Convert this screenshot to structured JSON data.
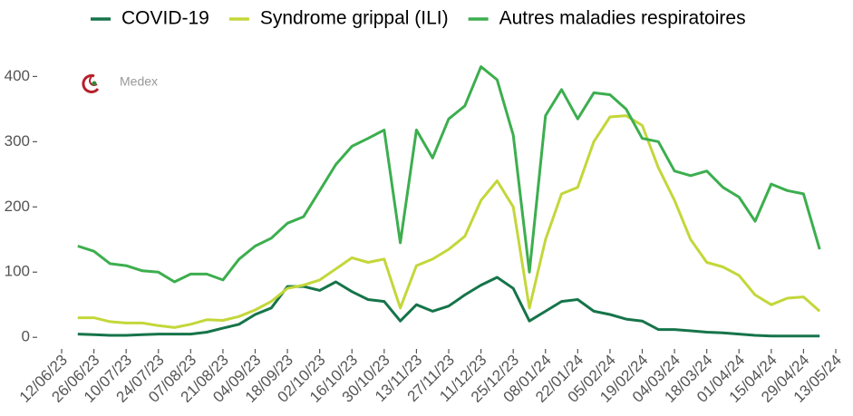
{
  "chart_data": {
    "type": "line",
    "logo_text": "Medex",
    "x": [
      "19/06/23",
      "26/06/23",
      "03/07/23",
      "10/07/23",
      "17/07/23",
      "24/07/23",
      "31/07/23",
      "07/08/23",
      "14/08/23",
      "21/08/23",
      "28/08/23",
      "04/09/23",
      "11/09/23",
      "18/09/23",
      "25/09/23",
      "02/10/23",
      "09/10/23",
      "16/10/23",
      "23/10/23",
      "30/10/23",
      "06/11/23",
      "13/11/23",
      "20/11/23",
      "27/11/23",
      "04/12/23",
      "11/12/23",
      "18/12/23",
      "25/12/23",
      "01/01/24",
      "08/01/24",
      "15/01/24",
      "22/01/24",
      "29/01/24",
      "05/02/24",
      "12/02/24",
      "19/02/24",
      "26/02/24",
      "04/03/24",
      "11/03/24",
      "18/03/24",
      "25/03/24",
      "01/04/24",
      "08/04/24",
      "15/04/24",
      "22/04/24",
      "29/04/24",
      "06/05/24"
    ],
    "series": [
      {
        "name": "COVID-19",
        "color": "#16744a",
        "values": [
          5,
          4,
          3,
          3,
          4,
          5,
          5,
          5,
          8,
          14,
          20,
          35,
          45,
          78,
          78,
          72,
          85,
          70,
          58,
          55,
          25,
          50,
          40,
          48,
          65,
          80,
          92,
          75,
          25,
          40,
          55,
          58,
          40,
          35,
          28,
          25,
          12,
          12,
          10,
          8,
          7,
          5,
          3,
          2,
          2,
          2,
          2
        ]
      },
      {
        "name": "Syndrome grippal (ILI)",
        "color": "#c3d73a",
        "values": [
          30,
          30,
          24,
          22,
          22,
          18,
          15,
          20,
          27,
          26,
          32,
          42,
          55,
          75,
          80,
          88,
          105,
          122,
          115,
          120,
          45,
          110,
          120,
          135,
          155,
          210,
          240,
          200,
          45,
          150,
          220,
          230,
          300,
          338,
          340,
          325,
          260,
          210,
          150,
          115,
          108,
          95,
          65,
          50,
          60,
          62,
          40
        ]
      },
      {
        "name": "Autres maladies respiratoires",
        "color": "#3cae4e",
        "values": [
          140,
          132,
          113,
          110,
          102,
          100,
          85,
          97,
          97,
          88,
          120,
          140,
          152,
          175,
          185,
          225,
          265,
          293,
          305,
          318,
          145,
          318,
          275,
          335,
          355,
          415,
          395,
          310,
          100,
          340,
          380,
          335,
          375,
          372,
          350,
          305,
          300,
          255,
          248,
          255,
          230,
          215,
          178,
          235,
          225,
          220,
          135
        ]
      }
    ],
    "xlim": [
      "12/06/23",
      "13/05/24"
    ],
    "xticks": [
      "12/06/23",
      "26/06/23",
      "10/07/23",
      "24/07/23",
      "07/08/23",
      "21/08/23",
      "04/09/23",
      "18/09/23",
      "02/10/23",
      "16/10/23",
      "30/10/23",
      "13/11/23",
      "27/11/23",
      "11/12/23",
      "25/12/23",
      "08/01/24",
      "22/01/24",
      "05/02/24",
      "19/02/24",
      "04/03/24",
      "18/03/24",
      "01/04/24",
      "15/04/24",
      "29/04/24",
      "13/05/24"
    ],
    "ylim": [
      -15,
      420
    ],
    "yticks": [
      0,
      100,
      200,
      300,
      400
    ],
    "grid": false,
    "legend": "top"
  }
}
